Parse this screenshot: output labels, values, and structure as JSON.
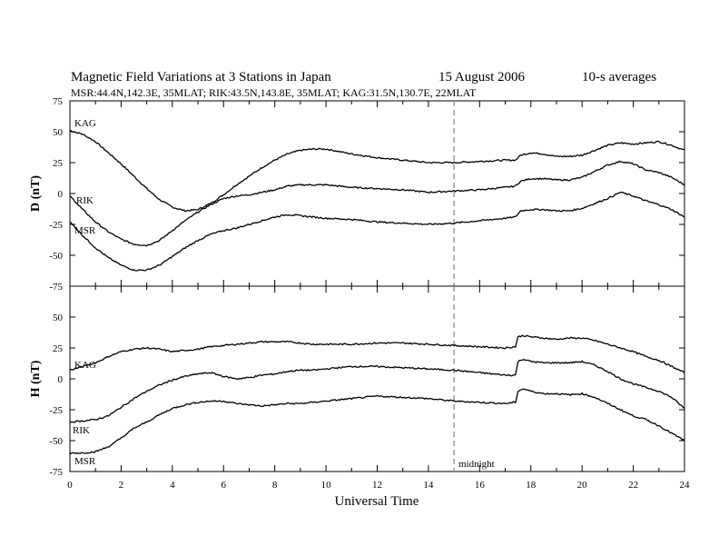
{
  "header": {
    "title": "Magnetic Field Variations at 3 Stations in Japan",
    "date": "15 August  2006",
    "averaging": "10-s averages",
    "stations_info": "MSR:44.4N,142.3E, 35MLAT;  RIK:43.5N,143.8E, 35MLAT;  KAG:31.5N,130.7E, 22MLAT"
  },
  "chart_data": [
    {
      "type": "line",
      "panel": "D",
      "ylabel": "D (nT)",
      "ylim": [
        -75,
        75
      ],
      "yticks": [
        "75",
        "50",
        "25",
        "0",
        "-25",
        "-50",
        "-75"
      ],
      "xlim": [
        0,
        24
      ],
      "grid": false,
      "series": [
        {
          "name": "KAG",
          "x": [
            0,
            0.5,
            1,
            1.5,
            2,
            2.5,
            3,
            3.5,
            4,
            4.5,
            5,
            5.5,
            6,
            6.5,
            7,
            7.5,
            8,
            8.5,
            9,
            9.5,
            10,
            11,
            12,
            13,
            14,
            15,
            16,
            17,
            17.4,
            17.6,
            18,
            18.5,
            19,
            19.5,
            20,
            20.5,
            21,
            21.5,
            22,
            22.5,
            23,
            23.5,
            24
          ],
          "values": [
            51,
            48,
            42,
            33,
            24,
            14,
            4,
            -5,
            -11,
            -14,
            -13,
            -8,
            -1,
            7,
            14,
            21,
            27,
            32,
            35,
            36,
            36,
            32,
            29,
            27,
            25,
            25,
            26,
            27,
            27,
            31,
            33,
            32,
            30,
            30,
            31,
            35,
            39,
            41,
            40,
            41,
            42,
            39,
            35
          ]
        },
        {
          "name": "RIK",
          "x": [
            0,
            0.5,
            1,
            1.5,
            2,
            2.5,
            3,
            3.5,
            4,
            4.5,
            5,
            5.5,
            6,
            6.5,
            7,
            7.5,
            8,
            8.5,
            9,
            9.5,
            10,
            11,
            12,
            13,
            14,
            15,
            16,
            17,
            17.4,
            17.6,
            18,
            18.5,
            19,
            19.5,
            20,
            20.5,
            21,
            21.5,
            22,
            22.5,
            23,
            23.5,
            24
          ],
          "values": [
            -2,
            -13,
            -23,
            -31,
            -37,
            -41,
            -42,
            -38,
            -30,
            -22,
            -15,
            -9,
            -4,
            -2,
            -1,
            1,
            3,
            6,
            7,
            7,
            7,
            5,
            4,
            3,
            1,
            2,
            3,
            5,
            6,
            10,
            12,
            12,
            11,
            11,
            13,
            18,
            23,
            26,
            24,
            19,
            17,
            13,
            7
          ]
        },
        {
          "name": "MSR",
          "x": [
            0,
            0.5,
            1,
            1.5,
            2,
            2.5,
            3,
            3.5,
            4,
            4.5,
            5,
            5.5,
            6,
            6.5,
            7,
            7.5,
            8,
            8.5,
            9,
            9.5,
            10,
            11,
            12,
            13,
            14,
            15,
            16,
            17,
            17.4,
            17.6,
            18,
            18.5,
            19,
            19.5,
            20,
            20.5,
            21,
            21.5,
            22,
            22.5,
            23,
            23.5,
            24
          ],
          "values": [
            -23,
            -34,
            -44,
            -52,
            -58,
            -62,
            -62,
            -58,
            -51,
            -44,
            -38,
            -33,
            -30,
            -28,
            -25,
            -22,
            -19,
            -17,
            -18,
            -19,
            -20,
            -21,
            -23,
            -24,
            -25,
            -24,
            -22,
            -20,
            -19,
            -14,
            -13,
            -13,
            -14,
            -14,
            -12,
            -8,
            -4,
            1,
            -2,
            -6,
            -9,
            -13,
            -19
          ]
        }
      ]
    },
    {
      "type": "line",
      "panel": "H",
      "ylabel": "H (nT)",
      "xlabel": "Universal Time",
      "ylim": [
        -75,
        75
      ],
      "yticks": [
        "75",
        "50",
        "25",
        "0",
        "-25",
        "-50",
        "-75"
      ],
      "xlim": [
        0,
        24
      ],
      "xticks": [
        "0",
        "2",
        "4",
        "6",
        "8",
        "10",
        "12",
        "14",
        "16",
        "18",
        "20",
        "22",
        "24"
      ],
      "grid": false,
      "series": [
        {
          "name": "KAG",
          "x": [
            0,
            0.5,
            1,
            1.5,
            2,
            2.5,
            3,
            3.5,
            4,
            4.5,
            5,
            5.5,
            6,
            6.5,
            7,
            7.5,
            8,
            8.5,
            9,
            9.5,
            10,
            11,
            12,
            13,
            14,
            15,
            16,
            17,
            17.4,
            17.5,
            17.7,
            18,
            18.5,
            19,
            19.5,
            20,
            20.5,
            21,
            21.5,
            22,
            22.5,
            23,
            23.5,
            24
          ],
          "values": [
            7,
            10,
            13,
            18,
            22,
            24,
            25,
            24,
            22,
            23,
            24,
            26,
            27,
            28,
            29,
            30,
            30,
            30,
            29,
            28,
            28,
            28,
            29,
            29,
            28,
            27,
            26,
            25,
            26,
            34,
            35,
            34,
            33,
            32,
            33,
            33,
            31,
            28,
            25,
            22,
            18,
            15,
            10,
            5
          ]
        },
        {
          "name": "RIK",
          "x": [
            0,
            0.5,
            1,
            1.5,
            2,
            2.5,
            3,
            3.5,
            4,
            4.5,
            5,
            5.5,
            6,
            6.5,
            7,
            7.5,
            8,
            8.5,
            9,
            9.5,
            10,
            11,
            12,
            13,
            14,
            15,
            16,
            17,
            17.4,
            17.5,
            17.7,
            18,
            18.5,
            19,
            19.5,
            20,
            20.5,
            21,
            21.5,
            22,
            22.5,
            23,
            23.5,
            24
          ],
          "values": [
            -35,
            -34,
            -33,
            -30,
            -23,
            -16,
            -10,
            -5,
            -1,
            2,
            4,
            5,
            2,
            0,
            1,
            3,
            4,
            6,
            7,
            7,
            8,
            10,
            10,
            9,
            8,
            7,
            5,
            3,
            3,
            14,
            16,
            14,
            13,
            13,
            13,
            14,
            11,
            6,
            0,
            -4,
            -7,
            -10,
            -15,
            -24
          ]
        },
        {
          "name": "MSR",
          "x": [
            0,
            0.5,
            1,
            1.5,
            2,
            2.5,
            3,
            3.5,
            4,
            4.5,
            5,
            5.5,
            6,
            6.5,
            7,
            7.5,
            8,
            8.5,
            9,
            9.5,
            10,
            11,
            12,
            13,
            14,
            15,
            16,
            17,
            17.4,
            17.5,
            17.7,
            18,
            18.5,
            19,
            19.5,
            20,
            20.5,
            21,
            21.5,
            22,
            22.5,
            23,
            23.5,
            24
          ],
          "values": [
            -60,
            -60,
            -59,
            -55,
            -48,
            -40,
            -35,
            -29,
            -24,
            -21,
            -19,
            -18,
            -18,
            -20,
            -21,
            -22,
            -21,
            -20,
            -20,
            -19,
            -18,
            -16,
            -14,
            -15,
            -16,
            -18,
            -19,
            -20,
            -19,
            -10,
            -8,
            -10,
            -12,
            -12,
            -13,
            -12,
            -15,
            -20,
            -25,
            -30,
            -33,
            -38,
            -44,
            -50
          ]
        }
      ]
    }
  ],
  "series_labels": {
    "D": {
      "KAG": "KAG",
      "RIK": "RIK",
      "MSR": "MSR"
    },
    "H": {
      "KAG": "KAG",
      "RIK": "RIK",
      "MSR": "MSR"
    }
  },
  "annotations": {
    "midnight_hour": 15,
    "midnight_label": "midnight",
    "marker_color": "#999999"
  }
}
